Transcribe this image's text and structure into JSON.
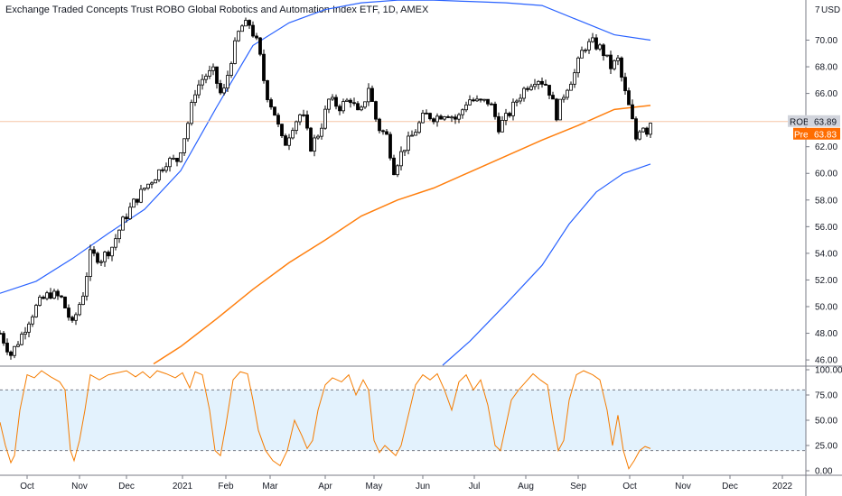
{
  "chart_data": {
    "type": "candlestick",
    "title": "Exchange Traded Concepts Trust ROBO Global Robotics and Automation Index ETF, 1D, AMEX",
    "currency_label": "USD",
    "y_top_label": "7",
    "y_ticks": [
      "70.00",
      "68.00",
      "66.00",
      "64.00",
      "62.00",
      "60.00",
      "58.00",
      "56.00",
      "54.00",
      "52.00",
      "50.00",
      "48.00",
      "46.00"
    ],
    "x_ticks": [
      "Oct",
      "Nov",
      "Dec",
      "2021",
      "Feb",
      "Mar",
      "Apr",
      "May",
      "Jun",
      "Jul",
      "Aug",
      "Sep",
      "Oct",
      "Nov",
      "Dec",
      "2022"
    ],
    "ylim": [
      45.6,
      72.2
    ],
    "price_tag": {
      "symbol": "ROBO",
      "value": "63.89"
    },
    "pre_tag": {
      "label": "Pre",
      "value": "63.83"
    },
    "colors": {
      "up": "#ffffff",
      "down": "#000000",
      "wick": "#000000",
      "band": "#2962ff",
      "ma": "#ff7f0e",
      "osc": "#f57c00",
      "osc_fill": "#e3f2fd",
      "price_line": "#f5c6a5",
      "pre_tag": "#ff6d00"
    },
    "series": {
      "close": [
        {
          "x": 0,
          "y": 48.0
        },
        {
          "x": 12,
          "y": 46.4
        },
        {
          "x": 22,
          "y": 47.6
        },
        {
          "x": 32,
          "y": 49.0
        },
        {
          "x": 42,
          "y": 50.2
        },
        {
          "x": 55,
          "y": 51.0
        },
        {
          "x": 68,
          "y": 50.6
        },
        {
          "x": 80,
          "y": 48.6
        },
        {
          "x": 92,
          "y": 51.0
        },
        {
          "x": 100,
          "y": 53.9
        },
        {
          "x": 112,
          "y": 53.6
        },
        {
          "x": 124,
          "y": 54.5
        },
        {
          "x": 136,
          "y": 56.4
        },
        {
          "x": 148,
          "y": 57.8
        },
        {
          "x": 160,
          "y": 58.9
        },
        {
          "x": 172,
          "y": 59.8
        },
        {
          "x": 184,
          "y": 60.9
        },
        {
          "x": 196,
          "y": 61.0
        },
        {
          "x": 206,
          "y": 63.2
        },
        {
          "x": 216,
          "y": 66.2
        },
        {
          "x": 226,
          "y": 67.3
        },
        {
          "x": 236,
          "y": 67.6
        },
        {
          "x": 246,
          "y": 65.6
        },
        {
          "x": 256,
          "y": 68.6
        },
        {
          "x": 266,
          "y": 71.0
        },
        {
          "x": 276,
          "y": 71.2
        },
        {
          "x": 286,
          "y": 69.5
        },
        {
          "x": 294,
          "y": 66.2
        },
        {
          "x": 304,
          "y": 64.5
        },
        {
          "x": 314,
          "y": 62.0
        },
        {
          "x": 324,
          "y": 63.6
        },
        {
          "x": 334,
          "y": 64.6
        },
        {
          "x": 344,
          "y": 62.0
        },
        {
          "x": 354,
          "y": 63.2
        },
        {
          "x": 364,
          "y": 65.5
        },
        {
          "x": 376,
          "y": 65.0
        },
        {
          "x": 388,
          "y": 65.6
        },
        {
          "x": 398,
          "y": 64.2
        },
        {
          "x": 408,
          "y": 66.5
        },
        {
          "x": 418,
          "y": 63.5
        },
        {
          "x": 428,
          "y": 62.8
        },
        {
          "x": 436,
          "y": 60.3
        },
        {
          "x": 446,
          "y": 61.8
        },
        {
          "x": 458,
          "y": 63.0
        },
        {
          "x": 470,
          "y": 64.4
        },
        {
          "x": 482,
          "y": 64.2
        },
        {
          "x": 494,
          "y": 64.6
        },
        {
          "x": 506,
          "y": 64.0
        },
        {
          "x": 518,
          "y": 65.6
        },
        {
          "x": 530,
          "y": 65.3
        },
        {
          "x": 542,
          "y": 65.4
        },
        {
          "x": 552,
          "y": 63.5
        },
        {
          "x": 562,
          "y": 64.3
        },
        {
          "x": 572,
          "y": 65.5
        },
        {
          "x": 582,
          "y": 66.5
        },
        {
          "x": 594,
          "y": 67.2
        },
        {
          "x": 606,
          "y": 66.6
        },
        {
          "x": 616,
          "y": 64.4
        },
        {
          "x": 626,
          "y": 66.3
        },
        {
          "x": 636,
          "y": 67.5
        },
        {
          "x": 646,
          "y": 69.5
        },
        {
          "x": 656,
          "y": 69.8
        },
        {
          "x": 666,
          "y": 69.3
        },
        {
          "x": 676,
          "y": 68.0
        },
        {
          "x": 684,
          "y": 68.5
        },
        {
          "x": 690,
          "y": 66.5
        },
        {
          "x": 698,
          "y": 64.5
        },
        {
          "x": 704,
          "y": 62.6
        },
        {
          "x": 710,
          "y": 63.8
        },
        {
          "x": 716,
          "y": 63.2
        },
        {
          "x": 720,
          "y": 63.9
        }
      ],
      "upper_band": [
        {
          "x": 0,
          "y": 51.0
        },
        {
          "x": 40,
          "y": 51.9
        },
        {
          "x": 80,
          "y": 53.6
        },
        {
          "x": 120,
          "y": 55.5
        },
        {
          "x": 160,
          "y": 57.3
        },
        {
          "x": 200,
          "y": 60.2
        },
        {
          "x": 240,
          "y": 65.0
        },
        {
          "x": 280,
          "y": 69.6
        },
        {
          "x": 320,
          "y": 71.3
        },
        {
          "x": 360,
          "y": 72.3
        },
        {
          "x": 400,
          "y": 72.8
        },
        {
          "x": 440,
          "y": 73.0
        },
        {
          "x": 480,
          "y": 73.0
        },
        {
          "x": 520,
          "y": 72.9
        },
        {
          "x": 560,
          "y": 72.8
        },
        {
          "x": 600,
          "y": 72.6
        },
        {
          "x": 640,
          "y": 71.5
        },
        {
          "x": 680,
          "y": 70.4
        },
        {
          "x": 720,
          "y": 70.0
        }
      ],
      "ma": [
        {
          "x": 170,
          "y": 45.7
        },
        {
          "x": 200,
          "y": 47.0
        },
        {
          "x": 240,
          "y": 49.1
        },
        {
          "x": 280,
          "y": 51.3
        },
        {
          "x": 320,
          "y": 53.3
        },
        {
          "x": 360,
          "y": 55.0
        },
        {
          "x": 400,
          "y": 56.8
        },
        {
          "x": 440,
          "y": 58.0
        },
        {
          "x": 480,
          "y": 58.9
        },
        {
          "x": 520,
          "y": 60.1
        },
        {
          "x": 560,
          "y": 61.3
        },
        {
          "x": 600,
          "y": 62.5
        },
        {
          "x": 640,
          "y": 63.6
        },
        {
          "x": 680,
          "y": 64.8
        },
        {
          "x": 720,
          "y": 65.1
        }
      ],
      "lower_band": [
        {
          "x": 490,
          "y": 45.6
        },
        {
          "x": 520,
          "y": 47.4
        },
        {
          "x": 560,
          "y": 50.2
        },
        {
          "x": 600,
          "y": 53.1
        },
        {
          "x": 630,
          "y": 56.2
        },
        {
          "x": 660,
          "y": 58.6
        },
        {
          "x": 690,
          "y": 60.0
        },
        {
          "x": 720,
          "y": 60.7
        }
      ]
    },
    "oscillator": {
      "ylim": [
        0,
        100
      ],
      "ticks": [
        "100.00",
        "75.00",
        "50.00",
        "25.00",
        "0.00"
      ],
      "upper": 80,
      "lower": 20,
      "values": [
        {
          "x": 0,
          "y": 48
        },
        {
          "x": 6,
          "y": 25
        },
        {
          "x": 12,
          "y": 8
        },
        {
          "x": 16,
          "y": 15
        },
        {
          "x": 22,
          "y": 60
        },
        {
          "x": 30,
          "y": 95
        },
        {
          "x": 38,
          "y": 92
        },
        {
          "x": 46,
          "y": 99
        },
        {
          "x": 56,
          "y": 93
        },
        {
          "x": 66,
          "y": 88
        },
        {
          "x": 72,
          "y": 80
        },
        {
          "x": 78,
          "y": 20
        },
        {
          "x": 82,
          "y": 10
        },
        {
          "x": 88,
          "y": 30
        },
        {
          "x": 94,
          "y": 60
        },
        {
          "x": 100,
          "y": 95
        },
        {
          "x": 110,
          "y": 90
        },
        {
          "x": 120,
          "y": 95
        },
        {
          "x": 130,
          "y": 97
        },
        {
          "x": 140,
          "y": 99
        },
        {
          "x": 150,
          "y": 93
        },
        {
          "x": 158,
          "y": 98
        },
        {
          "x": 166,
          "y": 92
        },
        {
          "x": 174,
          "y": 99
        },
        {
          "x": 184,
          "y": 96
        },
        {
          "x": 194,
          "y": 92
        },
        {
          "x": 202,
          "y": 97
        },
        {
          "x": 210,
          "y": 82
        },
        {
          "x": 216,
          "y": 98
        },
        {
          "x": 224,
          "y": 95
        },
        {
          "x": 232,
          "y": 60
        },
        {
          "x": 238,
          "y": 20
        },
        {
          "x": 244,
          "y": 15
        },
        {
          "x": 250,
          "y": 45
        },
        {
          "x": 258,
          "y": 90
        },
        {
          "x": 266,
          "y": 98
        },
        {
          "x": 274,
          "y": 96
        },
        {
          "x": 280,
          "y": 70
        },
        {
          "x": 286,
          "y": 40
        },
        {
          "x": 294,
          "y": 20
        },
        {
          "x": 302,
          "y": 10
        },
        {
          "x": 310,
          "y": 5
        },
        {
          "x": 318,
          "y": 20
        },
        {
          "x": 326,
          "y": 50
        },
        {
          "x": 334,
          "y": 35
        },
        {
          "x": 340,
          "y": 22
        },
        {
          "x": 346,
          "y": 30
        },
        {
          "x": 352,
          "y": 60
        },
        {
          "x": 360,
          "y": 85
        },
        {
          "x": 368,
          "y": 92
        },
        {
          "x": 378,
          "y": 88
        },
        {
          "x": 386,
          "y": 95
        },
        {
          "x": 394,
          "y": 75
        },
        {
          "x": 402,
          "y": 90
        },
        {
          "x": 408,
          "y": 80
        },
        {
          "x": 414,
          "y": 30
        },
        {
          "x": 420,
          "y": 18
        },
        {
          "x": 426,
          "y": 25
        },
        {
          "x": 432,
          "y": 20
        },
        {
          "x": 438,
          "y": 15
        },
        {
          "x": 444,
          "y": 25
        },
        {
          "x": 452,
          "y": 55
        },
        {
          "x": 460,
          "y": 85
        },
        {
          "x": 468,
          "y": 95
        },
        {
          "x": 476,
          "y": 90
        },
        {
          "x": 484,
          "y": 96
        },
        {
          "x": 492,
          "y": 80
        },
        {
          "x": 500,
          "y": 60
        },
        {
          "x": 508,
          "y": 88
        },
        {
          "x": 516,
          "y": 95
        },
        {
          "x": 524,
          "y": 80
        },
        {
          "x": 532,
          "y": 90
        },
        {
          "x": 540,
          "y": 65
        },
        {
          "x": 548,
          "y": 25
        },
        {
          "x": 554,
          "y": 20
        },
        {
          "x": 560,
          "y": 45
        },
        {
          "x": 566,
          "y": 70
        },
        {
          "x": 574,
          "y": 80
        },
        {
          "x": 582,
          "y": 88
        },
        {
          "x": 590,
          "y": 96
        },
        {
          "x": 598,
          "y": 90
        },
        {
          "x": 606,
          "y": 85
        },
        {
          "x": 612,
          "y": 50
        },
        {
          "x": 618,
          "y": 20
        },
        {
          "x": 624,
          "y": 30
        },
        {
          "x": 630,
          "y": 70
        },
        {
          "x": 638,
          "y": 95
        },
        {
          "x": 646,
          "y": 99
        },
        {
          "x": 656,
          "y": 95
        },
        {
          "x": 664,
          "y": 90
        },
        {
          "x": 672,
          "y": 60
        },
        {
          "x": 678,
          "y": 25
        },
        {
          "x": 684,
          "y": 55
        },
        {
          "x": 690,
          "y": 20
        },
        {
          "x": 696,
          "y": 2
        },
        {
          "x": 702,
          "y": 10
        },
        {
          "x": 708,
          "y": 20
        },
        {
          "x": 714,
          "y": 24
        },
        {
          "x": 720,
          "y": 22
        }
      ]
    }
  }
}
